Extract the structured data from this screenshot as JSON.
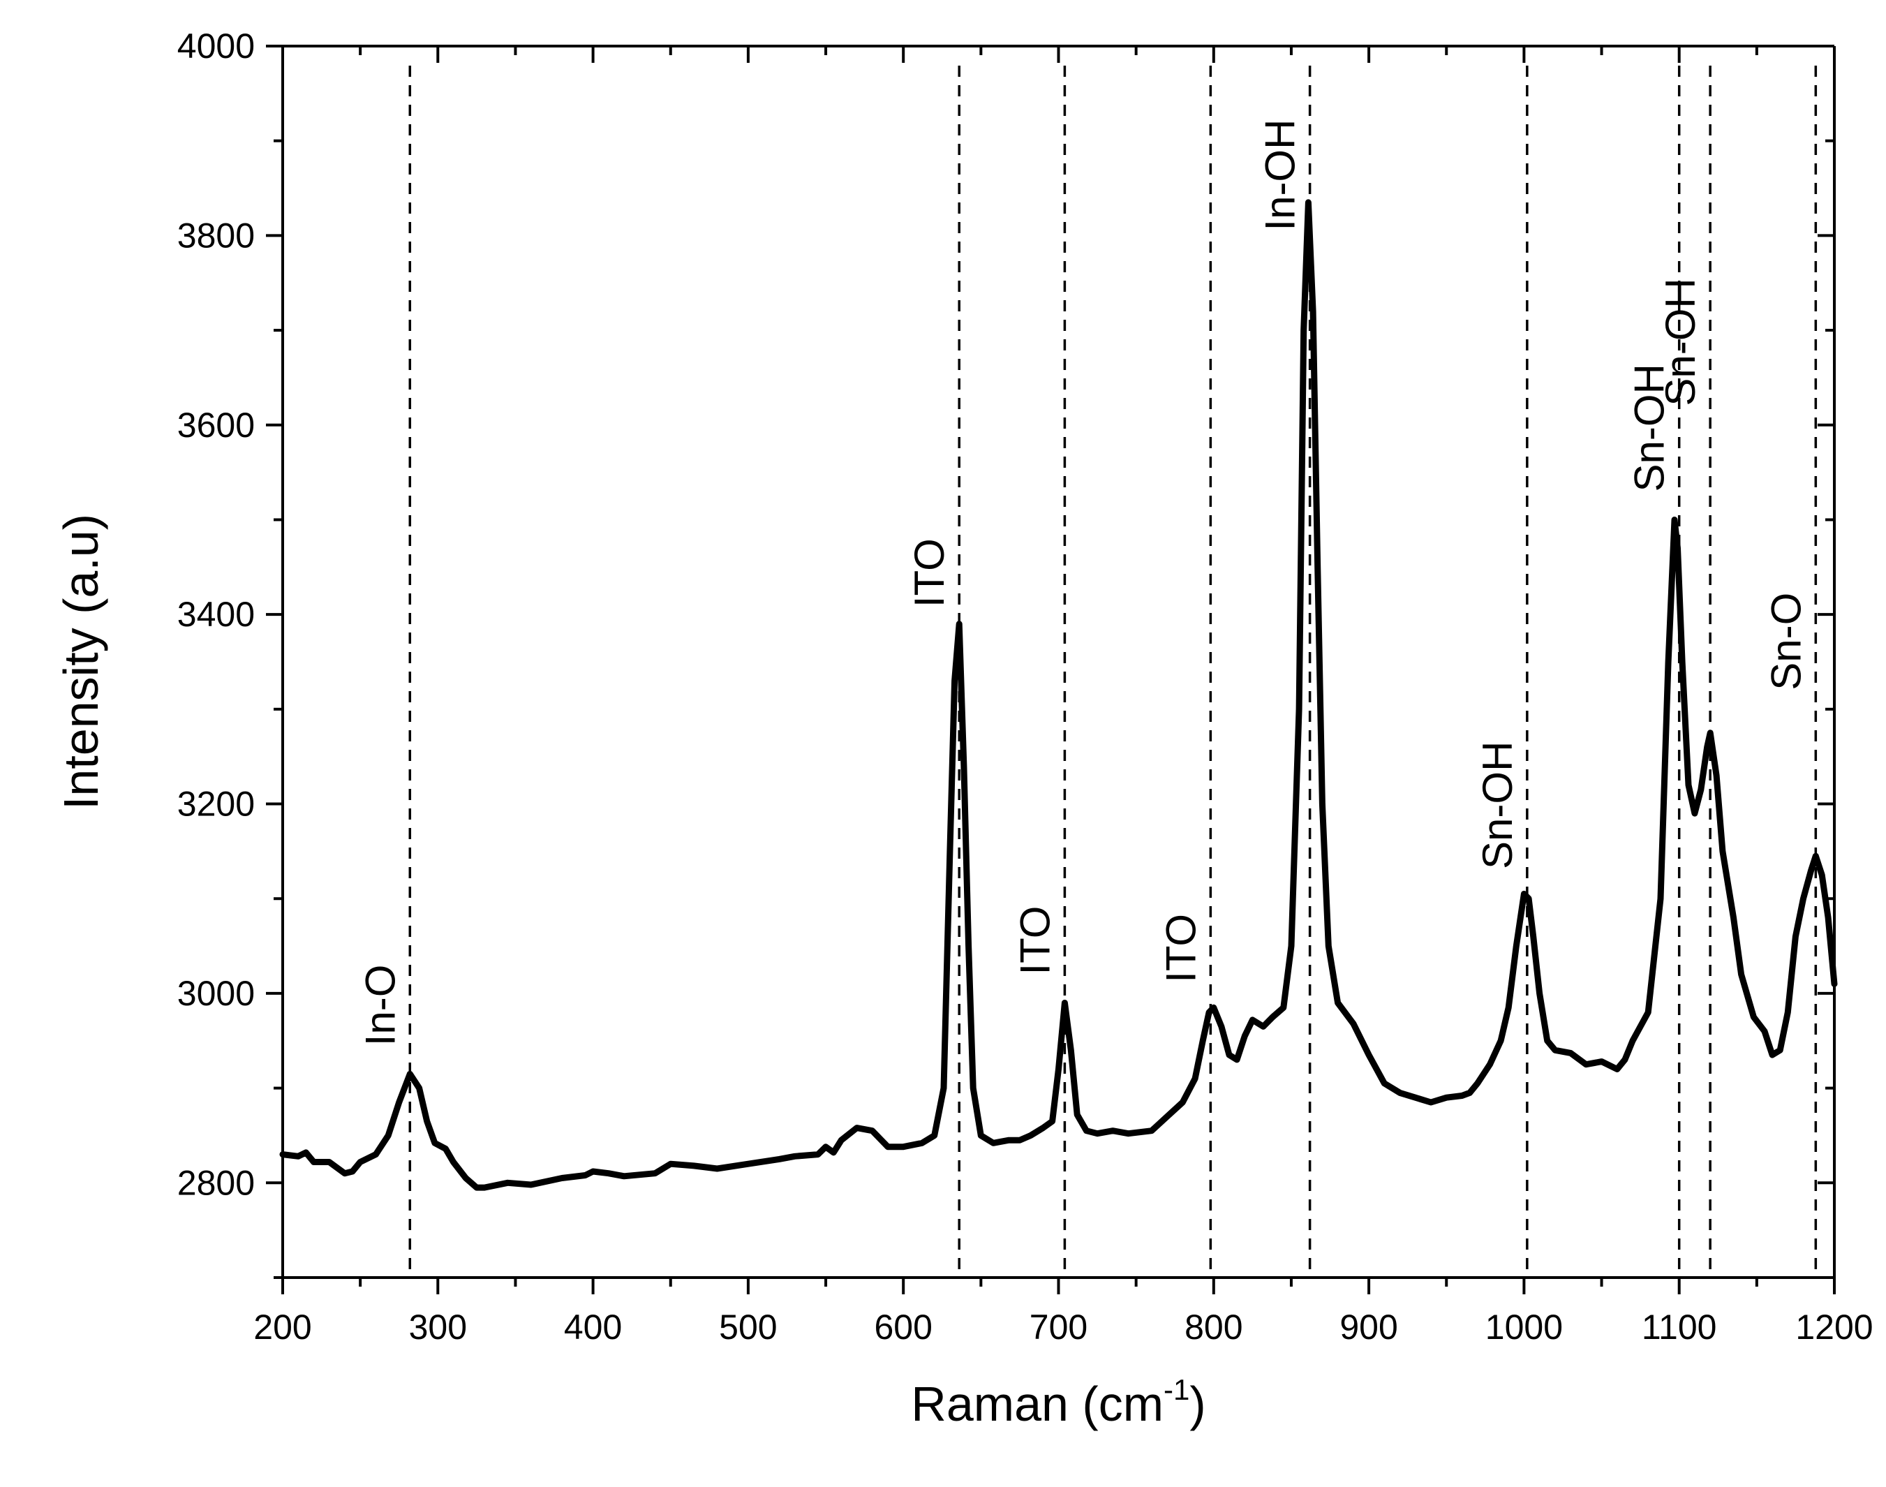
{
  "chart_data": {
    "type": "line",
    "title": "",
    "xlabel": "Raman (cm",
    "xlabel_superscript": "-1",
    "xlabel_suffix": ")",
    "ylabel": "Intensity (a.u)",
    "xlim": [
      200,
      1200
    ],
    "ylim": [
      2700,
      4000
    ],
    "x_ticks": [
      200,
      300,
      400,
      500,
      600,
      700,
      800,
      900,
      1000,
      1100,
      1200
    ],
    "y_ticks": [
      2800,
      3000,
      3200,
      3400,
      3600,
      3800,
      4000
    ],
    "grid": false,
    "legend": "none",
    "series": [
      {
        "color": "#000000",
        "x": [
          200,
          210,
          215,
          220,
          230,
          240,
          245,
          250,
          260,
          268,
          275,
          282,
          288,
          293,
          298,
          305,
          310,
          318,
          325,
          330,
          345,
          360,
          380,
          395,
          400,
          410,
          420,
          440,
          450,
          465,
          480,
          500,
          520,
          530,
          545,
          550,
          555,
          560,
          570,
          580,
          590,
          600,
          612,
          620,
          626,
          630,
          633,
          636,
          639,
          642,
          645,
          650,
          658,
          668,
          675,
          682,
          690,
          696,
          700,
          704,
          708,
          712,
          718,
          725,
          735,
          745,
          760,
          770,
          780,
          788,
          793,
          797,
          800,
          805,
          810,
          815,
          820,
          825,
          832,
          838,
          845,
          850,
          855,
          858,
          861,
          864,
          867,
          870,
          874,
          880,
          890,
          900,
          910,
          920,
          930,
          940,
          950,
          960,
          965,
          970,
          978,
          985,
          990,
          995,
          1000,
          1003,
          1006,
          1010,
          1015,
          1020,
          1030,
          1040,
          1050,
          1060,
          1065,
          1070,
          1080,
          1088,
          1093,
          1097,
          1099,
          1102,
          1106,
          1110,
          1114,
          1118,
          1120,
          1124,
          1128,
          1135,
          1140,
          1148,
          1155,
          1160,
          1165,
          1170,
          1175,
          1180,
          1185,
          1188,
          1192,
          1196,
          1200
        ],
        "y": [
          2830,
          2828,
          2832,
          2822,
          2822,
          2810,
          2812,
          2822,
          2830,
          2850,
          2885,
          2915,
          2900,
          2865,
          2842,
          2836,
          2822,
          2805,
          2795,
          2795,
          2800,
          2798,
          2805,
          2808,
          2812,
          2810,
          2807,
          2810,
          2820,
          2818,
          2815,
          2820,
          2825,
          2828,
          2830,
          2838,
          2832,
          2845,
          2858,
          2855,
          2838,
          2838,
          2842,
          2850,
          2900,
          3150,
          3330,
          3390,
          3240,
          3050,
          2900,
          2850,
          2842,
          2845,
          2845,
          2850,
          2858,
          2865,
          2920,
          2990,
          2940,
          2872,
          2855,
          2852,
          2855,
          2852,
          2855,
          2870,
          2885,
          2910,
          2950,
          2980,
          2985,
          2965,
          2935,
          2930,
          2955,
          2972,
          2965,
          2975,
          2985,
          3050,
          3300,
          3700,
          3835,
          3720,
          3450,
          3200,
          3050,
          2990,
          2968,
          2935,
          2905,
          2895,
          2890,
          2885,
          2890,
          2892,
          2895,
          2905,
          2925,
          2950,
          2985,
          3050,
          3105,
          3100,
          3060,
          3000,
          2950,
          2940,
          2937,
          2925,
          2928,
          2920,
          2930,
          2950,
          2980,
          3100,
          3350,
          3500,
          3470,
          3350,
          3220,
          3190,
          3215,
          3260,
          3275,
          3230,
          3150,
          3080,
          3020,
          2975,
          2960,
          2935,
          2940,
          2980,
          3060,
          3100,
          3130,
          3145,
          3125,
          3080,
          3010
        ]
      }
    ],
    "annotations": [
      {
        "text": "In-O",
        "x": 282
      },
      {
        "text": "ITO",
        "x": 636
      },
      {
        "text": "ITO",
        "x": 704
      },
      {
        "text": "ITO",
        "x": 798
      },
      {
        "text": "In-OH",
        "x": 862
      },
      {
        "text": "Sn-OH",
        "x": 1002
      },
      {
        "text": "Sn-OH",
        "x": 1100
      },
      {
        "text": "Sn-OH",
        "x": 1120
      },
      {
        "text": "Sn-O",
        "x": 1188
      }
    ]
  }
}
